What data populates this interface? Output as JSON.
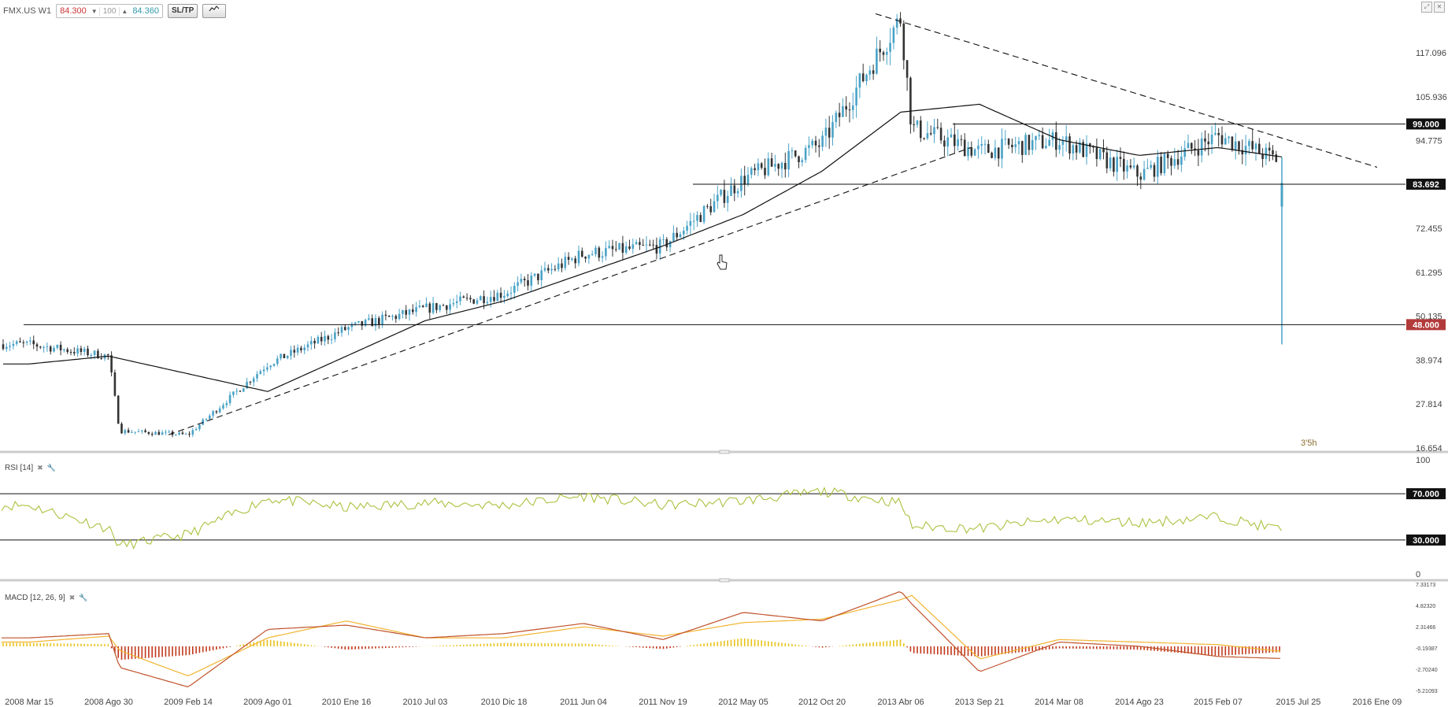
{
  "toolbar": {
    "symbol": "FMX.US W1",
    "bid": "84.300",
    "lot": "100",
    "ask": "84.360",
    "sltp": "SL/TP",
    "down_arrow": "▼",
    "up_arrow": "▲"
  },
  "panels": {
    "rsi_label": "RSI [14]",
    "macd_label": "MACD [12, 26, 9]"
  },
  "colors": {
    "up": "#4aa3c7",
    "down": "#333333",
    "rsi": "#a9c23f",
    "macd_line": "#c0522a",
    "signal_line": "#f2b430",
    "hist_pos": "#e8c21a",
    "hist_neg": "#c0391b",
    "sell_level": "#b33a3a"
  },
  "chart_data": [
    {
      "type": "candlestick",
      "title": "FMX.US W1",
      "ylim": [
        16.654,
        128.5
      ],
      "yticks": [
        117.096,
        105.936,
        94.775,
        83.692,
        72.455,
        61.295,
        50.135,
        38.974,
        27.814,
        16.654
      ],
      "xticks": [
        "2008 Mar 15",
        "2008 Ago 30",
        "2009 Feb 14",
        "2009 Ago 01",
        "2010 Ene 16",
        "2010 Jul 03",
        "2010 Dic 18",
        "2011 Jun 04",
        "2011 Nov 19",
        "2012 May 05",
        "2012 Oct 20",
        "2013 Abr 06",
        "2013 Sep 21",
        "2014 Mar 08",
        "2014 Ago 23",
        "2015 Feb 07",
        "2015 Jul 25",
        "2016 Ene 09"
      ],
      "price_keypoints": [
        [
          "2008 Mar 15",
          43
        ],
        [
          "2008 Ago 30",
          40
        ],
        [
          "2008 Ago 30",
          21
        ],
        [
          "2009 Feb 14",
          20
        ],
        [
          "2009 Ago 01",
          38
        ],
        [
          "2010 Ene 16",
          47
        ],
        [
          "2010 Jul 03",
          52
        ],
        [
          "2010 Dic 18",
          56
        ],
        [
          "2011 Jun 04",
          66
        ],
        [
          "2011 Nov 19",
          68
        ],
        [
          "2012 May 05",
          85
        ],
        [
          "2012 Oct 20",
          94
        ],
        [
          "2013 Abr 06",
          126
        ],
        [
          "2013 Abr 06",
          98
        ],
        [
          "2013 Sep 21",
          92
        ],
        [
          "2014 Mar 08",
          95
        ],
        [
          "2014 Ago 23",
          86
        ],
        [
          "2015 Feb 07",
          96
        ],
        [
          "2015 Jul 25",
          84
        ]
      ],
      "moving_average_keypoints": [
        [
          "2008 Mar 15",
          38
        ],
        [
          "2008 Ago 30",
          40
        ],
        [
          "2009 Ago 01",
          31
        ],
        [
          "2010 Ene 16",
          40
        ],
        [
          "2010 Jul 03",
          49
        ],
        [
          "2010 Dic 18",
          54
        ],
        [
          "2011 Jun 04",
          61
        ],
        [
          "2011 Nov 19",
          68
        ],
        [
          "2012 May 05",
          76
        ],
        [
          "2012 Oct 20",
          87
        ],
        [
          "2013 Abr 06",
          102
        ],
        [
          "2013 Sep 21",
          104
        ],
        [
          "2014 Mar 08",
          95
        ],
        [
          "2014 Ago 23",
          91
        ],
        [
          "2015 Feb 07",
          93
        ],
        [
          "2015 Jul 25",
          90
        ]
      ],
      "last_bar": {
        "open": 90,
        "high": 90.5,
        "low": 43,
        "close": 84
      },
      "horizontal_levels": [
        {
          "value": 99.0,
          "label": "99.000"
        },
        {
          "value": 83.692,
          "label": "83.692"
        },
        {
          "value": 48.0,
          "label": "48.000"
        }
      ],
      "trendlines": [
        {
          "style": "dashed",
          "from": [
            "2009 Feb 14",
            20
          ],
          "to": [
            "2013 Sep 21",
            93
          ]
        },
        {
          "style": "dashed",
          "from": [
            "2013 Abr 06",
            127
          ],
          "to": [
            "2016 Ene 09",
            88
          ]
        }
      ],
      "annotations": [
        "3'5h"
      ]
    },
    {
      "type": "line",
      "title": "RSI [14]",
      "ylim": [
        0,
        100
      ],
      "yticks": [
        100,
        0
      ],
      "levels": [
        {
          "value": 70,
          "label": "70.000"
        },
        {
          "value": 30,
          "label": "30.000"
        }
      ],
      "rsi_keypoints": [
        [
          "2008 Mar 15",
          60
        ],
        [
          "2008 Ago 30",
          40
        ],
        [
          "2008 Ago 30",
          25
        ],
        [
          "2009 Feb 14",
          35
        ],
        [
          "2009 Ago 01",
          66
        ],
        [
          "2010 Ene 16",
          58
        ],
        [
          "2010 Jul 03",
          62
        ],
        [
          "2010 Dic 18",
          60
        ],
        [
          "2011 Jun 04",
          68
        ],
        [
          "2011 Nov 19",
          60
        ],
        [
          "2012 May 05",
          64
        ],
        [
          "2012 Oct 20",
          72
        ],
        [
          "2013 Abr 06",
          62
        ],
        [
          "2013 Abr 06",
          42
        ],
        [
          "2013 Sep 21",
          40
        ],
        [
          "2014 Mar 08",
          48
        ],
        [
          "2014 Ago 23",
          45
        ],
        [
          "2015 Feb 07",
          50
        ],
        [
          "2015 Jul 25",
          36
        ]
      ]
    },
    {
      "type": "line",
      "title": "MACD [12, 26, 9]",
      "ylim": [
        -5.21093,
        7.33173
      ],
      "yticks": [
        7.33173,
        4.8232,
        2.31466,
        -0.19387,
        -2.7024,
        -5.21093
      ],
      "macd_keypoints": [
        [
          "2008 Mar 15",
          1.0
        ],
        [
          "2008 Ago 30",
          1.5
        ],
        [
          "2008 Ago 30",
          -2.5
        ],
        [
          "2009 Feb 14",
          -4.8
        ],
        [
          "2009 Ago 01",
          2.0
        ],
        [
          "2010 Ene 16",
          2.5
        ],
        [
          "2010 Jul 03",
          1.0
        ],
        [
          "2010 Dic 18",
          1.5
        ],
        [
          "2011 Jun 04",
          2.7
        ],
        [
          "2011 Nov 19",
          0.8
        ],
        [
          "2012 May 05",
          4.0
        ],
        [
          "2012 Oct 20",
          3.0
        ],
        [
          "2013 Abr 06",
          6.5
        ],
        [
          "2013 Abr 06",
          5.0
        ],
        [
          "2013 Sep 21",
          -3.0
        ],
        [
          "2014 Mar 08",
          0.5
        ],
        [
          "2014 Ago 23",
          0.0
        ],
        [
          "2015 Feb 07",
          -1.2
        ],
        [
          "2015 Jul 25",
          -1.5
        ]
      ],
      "signal_keypoints": [
        [
          "2008 Mar 15",
          0.5
        ],
        [
          "2008 Ago 30",
          1.2
        ],
        [
          "2008 Ago 30",
          -0.5
        ],
        [
          "2009 Feb 14",
          -3.5
        ],
        [
          "2009 Ago 01",
          1.0
        ],
        [
          "2010 Ene 16",
          3.0
        ],
        [
          "2010 Jul 03",
          1.0
        ],
        [
          "2010 Dic 18",
          1.0
        ],
        [
          "2011 Jun 04",
          2.3
        ],
        [
          "2011 Nov 19",
          1.2
        ],
        [
          "2012 May 05",
          2.8
        ],
        [
          "2012 Oct 20",
          3.2
        ],
        [
          "2013 Abr 06",
          5.5
        ],
        [
          "2013 Abr 06",
          6.0
        ],
        [
          "2013 Sep 21",
          -1.5
        ],
        [
          "2014 Mar 08",
          0.8
        ],
        [
          "2014 Ago 23",
          0.5
        ],
        [
          "2015 Feb 07",
          0.2
        ],
        [
          "2015 Jul 25",
          -0.8
        ]
      ]
    }
  ]
}
